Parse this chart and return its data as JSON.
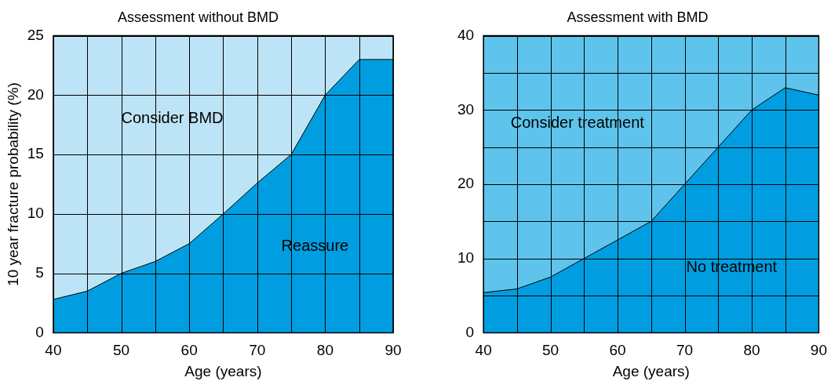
{
  "chart_data": [
    {
      "type": "area",
      "title": "Assessment without BMD",
      "xlabel": "Age (years)",
      "ylabel": "10 year fracture probability (%)",
      "x": [
        40,
        45,
        50,
        55,
        60,
        65,
        70,
        75,
        80,
        85,
        90
      ],
      "series": [
        {
          "color": "#009ee0",
          "values": [
            2.8,
            3.5,
            5,
            6,
            7.5,
            10,
            12.6,
            15,
            20,
            23,
            23
          ]
        }
      ],
      "bands": [
        {
          "axis": "y",
          "from": 0,
          "to": 25,
          "color": "#bde4f6"
        }
      ],
      "xlim": [
        40,
        90
      ],
      "xticks": [
        40,
        {
          "value": 45,
          "label": null
        },
        50,
        {
          "value": 55,
          "label": null
        },
        60,
        {
          "value": 65,
          "label": null
        },
        70,
        {
          "value": 75,
          "label": null
        },
        80,
        {
          "value": 85,
          "label": null
        },
        90
      ],
      "ylim": [
        0,
        25
      ],
      "yticks": [
        0,
        5,
        10,
        15,
        20,
        25
      ],
      "grid": true,
      "legend": false,
      "annotations": [
        "Consider BMD",
        "Reassure"
      ]
    },
    {
      "type": "area",
      "title": "Assessment with BMD",
      "xlabel": "Age (years)",
      "x": [
        40,
        45,
        50,
        55,
        60,
        65,
        70,
        75,
        80,
        85,
        90
      ],
      "series": [
        {
          "color": "#009ee0",
          "values": [
            5.4,
            5.9,
            7.5,
            10,
            12.5,
            15,
            20,
            25,
            30,
            33,
            32
          ]
        }
      ],
      "bands": [
        {
          "axis": "y",
          "from": 0,
          "to": 40,
          "color": "#5ec4ec"
        }
      ],
      "xlim": [
        40,
        90
      ],
      "xticks": [
        40,
        {
          "value": 45,
          "label": null
        },
        50,
        {
          "value": 55,
          "label": null
        },
        60,
        {
          "value": 65,
          "label": null
        },
        70,
        {
          "value": 75,
          "label": null
        },
        80,
        {
          "value": 85,
          "label": null
        },
        90
      ],
      "ylim": [
        0,
        40
      ],
      "yticks": [
        0,
        {
          "value": 5,
          "label": null
        },
        10,
        {
          "value": 15,
          "label": null
        },
        20,
        {
          "value": 25,
          "label": null
        },
        30,
        {
          "value": 35,
          "label": null
        },
        40
      ],
      "grid": true,
      "legend": false,
      "annotations": [
        "Consider treatment",
        "No treatment"
      ]
    }
  ]
}
